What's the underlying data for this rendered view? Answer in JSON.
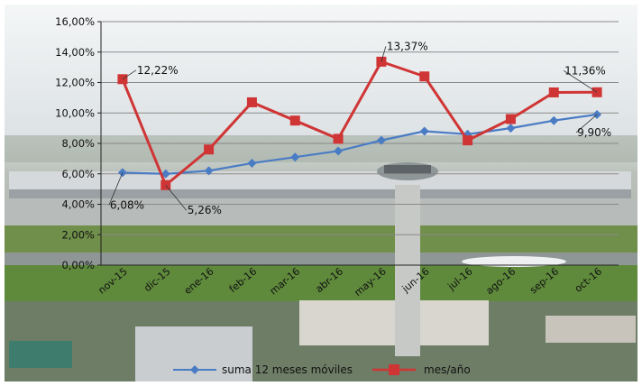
{
  "chart_data": {
    "type": "line",
    "title": "",
    "xlabel": "",
    "ylabel": "",
    "categories": [
      "nov-15",
      "dic-15",
      "ene-16",
      "feb-16",
      "mar-16",
      "abr-16",
      "may-16",
      "jun-16",
      "jul-16",
      "ago-16",
      "sep-16",
      "oct-16"
    ],
    "ylim": [
      0,
      16
    ],
    "y_ticks": [
      "0,00%",
      "2,00%",
      "4,00%",
      "6,00%",
      "8,00%",
      "10,00%",
      "12,00%",
      "14,00%",
      "16,00%"
    ],
    "grid": true,
    "legend_position": "bottom",
    "series": [
      {
        "name": "suma 12 meses móviles",
        "color": "#4A7CC4",
        "marker": "diamond",
        "values": [
          6.08,
          6.0,
          6.2,
          6.7,
          7.1,
          7.5,
          8.2,
          8.8,
          8.6,
          9.0,
          9.5,
          9.9
        ]
      },
      {
        "name": "mes/año",
        "color": "#D03535",
        "marker": "square",
        "values": [
          12.22,
          5.26,
          7.6,
          10.7,
          9.5,
          8.3,
          13.37,
          12.4,
          8.2,
          9.6,
          11.35,
          11.36
        ]
      }
    ],
    "data_labels": [
      "12,22%",
      "13,37%",
      "11,36%",
      "6,08%",
      "5,26%",
      "9,90%"
    ]
  },
  "background": {
    "description_icon": "airport-photo-background"
  }
}
